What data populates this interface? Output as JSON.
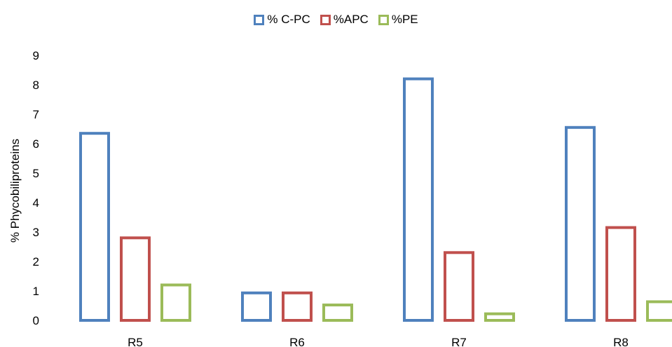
{
  "chart_data": {
    "type": "bar",
    "categories": [
      "R5",
      "R6",
      "R7",
      "R8"
    ],
    "series": [
      {
        "name": "% C-PC",
        "values": [
          6.4,
          0.98,
          8.25,
          6.6
        ],
        "color": "#4F81BD"
      },
      {
        "name": "%APC",
        "values": [
          2.85,
          0.98,
          2.35,
          3.2
        ],
        "color": "#C0504D"
      },
      {
        "name": "%PE",
        "values": [
          1.25,
          0.57,
          0.27,
          0.68
        ],
        "color": "#9BBB59"
      }
    ],
    "title": "",
    "xlabel": "",
    "ylabel": "% Phycobiliproteins",
    "ylim": [
      0,
      9
    ],
    "yticks": [
      "0",
      "1",
      "2",
      "3",
      "4",
      "5",
      "6",
      "7",
      "8",
      "9"
    ],
    "grid": false,
    "legend_position": "top"
  }
}
